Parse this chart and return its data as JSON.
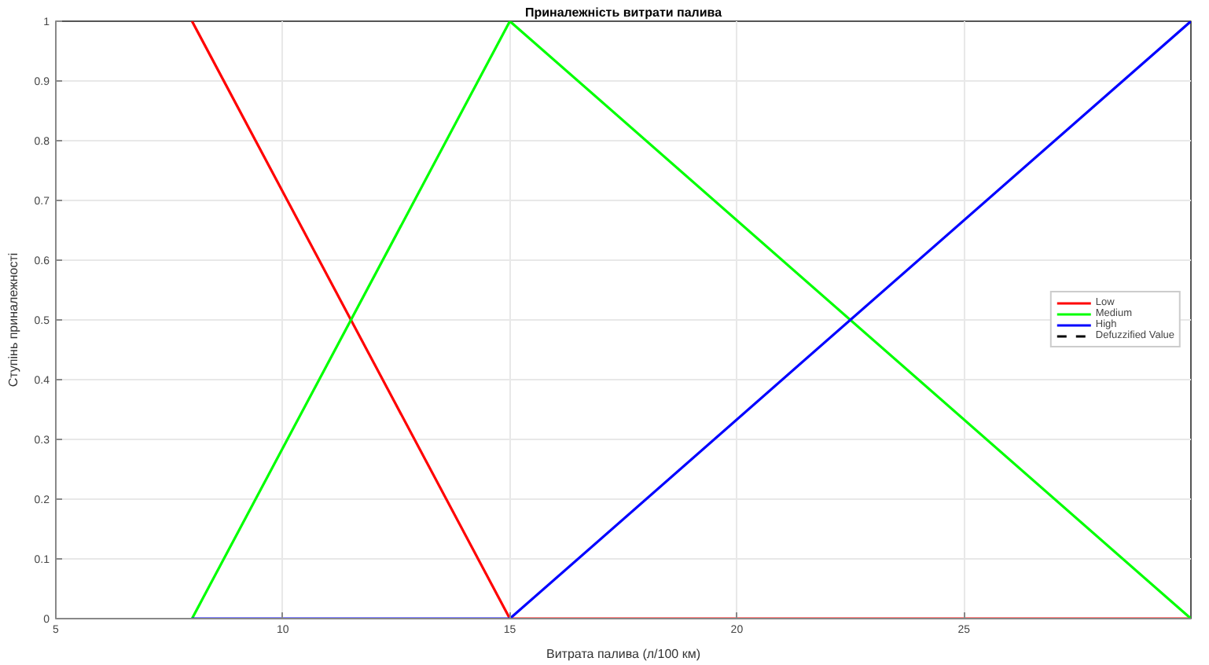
{
  "chart_data": {
    "type": "line",
    "title": "Приналежність витрати палива",
    "xlabel": "Витрата палива (л/100 км)",
    "ylabel": "Ступінь приналежності",
    "xlim": [
      5,
      30
    ],
    "ylim": [
      0,
      1
    ],
    "xticks": [
      5,
      10,
      15,
      20,
      25
    ],
    "yticks": [
      0,
      0.1,
      0.2,
      0.3,
      0.4,
      0.5,
      0.6,
      0.7,
      0.8,
      0.9,
      1
    ],
    "grid": true,
    "legend": "right",
    "series": [
      {
        "name": "Low",
        "color": "#ff0000",
        "x": [
          8,
          15,
          30
        ],
        "values": [
          1,
          0,
          0
        ]
      },
      {
        "name": "Medium",
        "color": "#00ff00",
        "x": [
          8,
          15,
          30
        ],
        "values": [
          0,
          1,
          0
        ]
      },
      {
        "name": "High",
        "color": "#0000ff",
        "x": [
          8,
          15,
          30
        ],
        "values": [
          0,
          0,
          1
        ]
      },
      {
        "name": "Defuzzified Value",
        "color": "#000000",
        "line_style": "dashed"
      }
    ]
  }
}
